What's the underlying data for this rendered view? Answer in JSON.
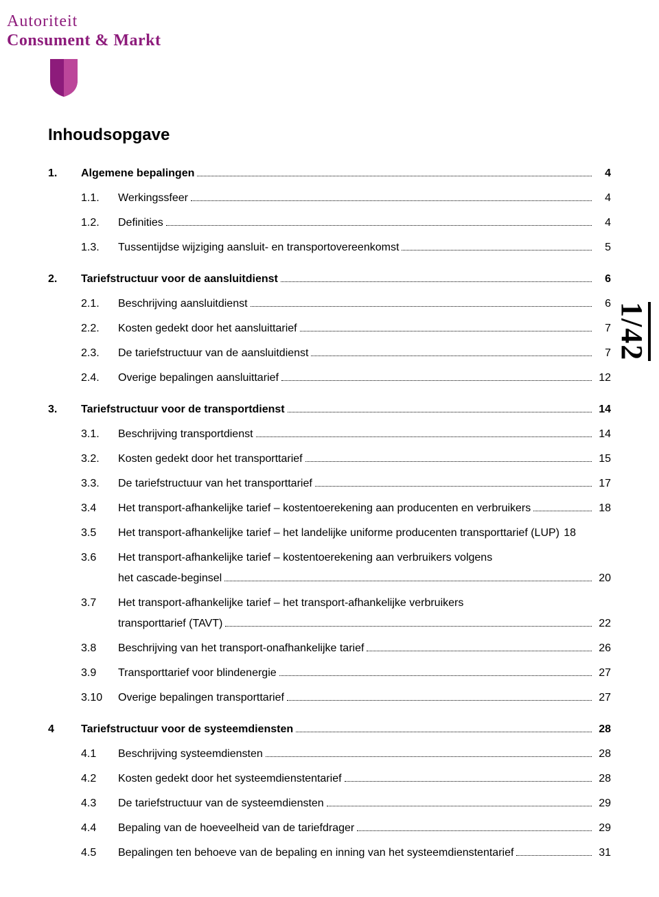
{
  "logo": {
    "line1": "Autoriteit",
    "line2": "Consument & Markt",
    "brand_color": "#8d1b7b",
    "shield_fill_a": "#8d1b7b",
    "shield_fill_b": "#c44da0"
  },
  "heading": "Inhoudsopgave",
  "page_indicator": "1/42",
  "typography": {
    "heading_fontsize_pt": 18,
    "body_fontsize_pt": 12,
    "page_indicator_fontsize_pt": 33,
    "text_color": "#000000",
    "background_color": "#ffffff"
  },
  "toc": [
    {
      "level": "top",
      "num": "1.",
      "label": "Algemene bepalingen",
      "page": "4"
    },
    {
      "level": "sub",
      "num": "1.1.",
      "label": "Werkingssfeer",
      "page": "4"
    },
    {
      "level": "sub",
      "num": "1.2.",
      "label": "Definities",
      "page": "4"
    },
    {
      "level": "sub",
      "num": "1.3.",
      "label": "Tussentijdse wijziging aansluit- en transportovereenkomst",
      "page": "5"
    },
    {
      "level": "top",
      "num": "2.",
      "label": "Tariefstructuur voor de aansluitdienst",
      "page": "6"
    },
    {
      "level": "sub",
      "num": "2.1.",
      "label": "Beschrijving aansluitdienst",
      "page": "6"
    },
    {
      "level": "sub",
      "num": "2.2.",
      "label": "Kosten gedekt door het aansluittarief",
      "page": "7"
    },
    {
      "level": "sub",
      "num": "2.3.",
      "label": "De tariefstructuur van de aansluitdienst",
      "page": "7"
    },
    {
      "level": "sub",
      "num": "2.4.",
      "label": "Overige bepalingen aansluittarief",
      "page": "12"
    },
    {
      "level": "top",
      "num": "3.",
      "label": "Tariefstructuur voor de transportdienst",
      "page": "14"
    },
    {
      "level": "sub",
      "num": "3.1.",
      "label": "Beschrijving transportdienst",
      "page": "14"
    },
    {
      "level": "sub",
      "num": "3.2.",
      "label": "Kosten gedekt door het transporttarief",
      "page": "15"
    },
    {
      "level": "sub",
      "num": "3.3.",
      "label": "De tariefstructuur van het transporttarief",
      "page": "17"
    },
    {
      "level": "sub",
      "num": "3.4",
      "label": "Het transport-afhankelijke tarief – kostentoerekening aan producenten en verbruikers",
      "page": "18"
    },
    {
      "level": "sub",
      "num": "3.5",
      "label": "Het transport-afhankelijke tarief – het landelijke uniforme producenten transporttarief (LUP)",
      "page": "18",
      "inline_page": true
    },
    {
      "level": "sub",
      "num": "3.6",
      "label": "Het transport-afhankelijke tarief – kostentoerekening aan verbruikers volgens",
      "continuation": "het cascade-beginsel",
      "page": "20"
    },
    {
      "level": "sub",
      "num": "3.7",
      "label": "Het transport-afhankelijke tarief – het transport-afhankelijke verbruikers",
      "continuation": "transporttarief (TAVT)",
      "page": "22"
    },
    {
      "level": "sub",
      "num": "3.8",
      "label": "Beschrijving van het transport-onafhankelijke tarief",
      "page": "26"
    },
    {
      "level": "sub",
      "num": "3.9",
      "label": "Transporttarief voor blindenergie",
      "page": "27"
    },
    {
      "level": "sub",
      "num": "3.10",
      "label": "Overige bepalingen transporttarief",
      "page": "27"
    },
    {
      "level": "top",
      "num": "4",
      "label": "Tariefstructuur voor de systeemdiensten",
      "page": "28"
    },
    {
      "level": "sub",
      "num": "4.1",
      "label": "Beschrijving systeemdiensten",
      "page": "28"
    },
    {
      "level": "sub",
      "num": "4.2",
      "label": "Kosten gedekt door het systeemdienstentarief",
      "page": "28"
    },
    {
      "level": "sub",
      "num": "4.3",
      "label": "De tariefstructuur van de systeemdiensten",
      "page": "29"
    },
    {
      "level": "sub",
      "num": "4.4",
      "label": "Bepaling van de hoeveelheid van de tariefdrager",
      "page": "29"
    },
    {
      "level": "sub",
      "num": "4.5",
      "label": "Bepalingen ten behoeve van de bepaling en inning van het systeemdienstentarief",
      "page": "31"
    }
  ]
}
